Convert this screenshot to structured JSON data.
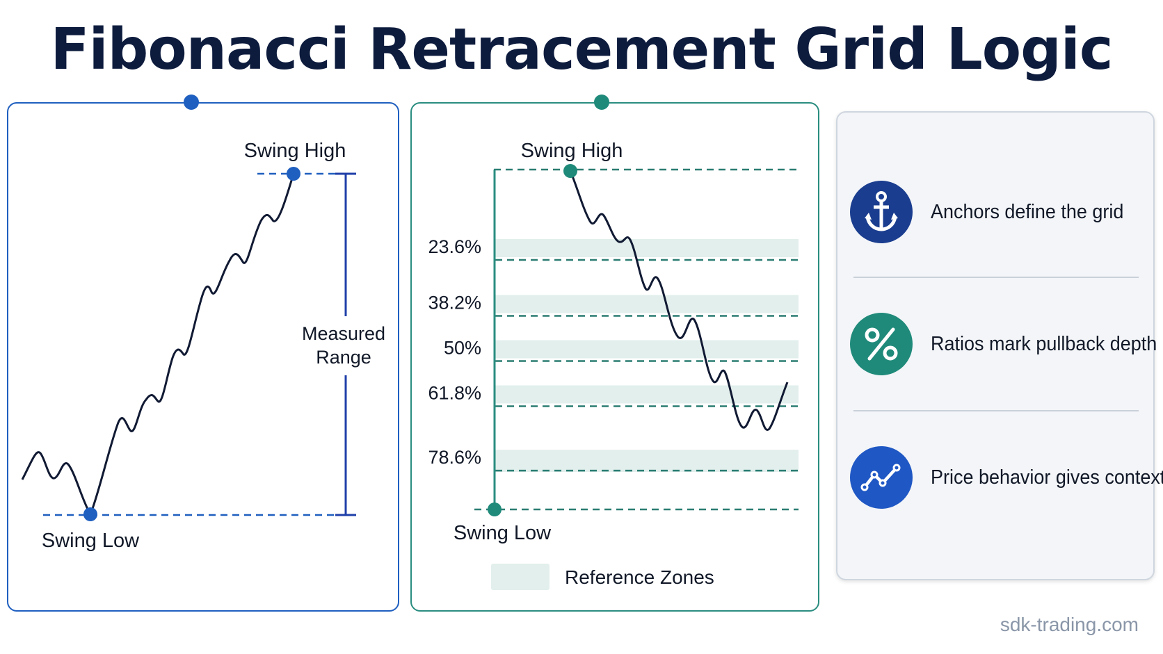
{
  "title": "Fibonacci Retracement Grid Logic",
  "left_panel": {
    "swing_high": "Swing High",
    "swing_low": "Swing Low",
    "measured_range_line1": "Measured",
    "measured_range_line2": "Range"
  },
  "mid_panel": {
    "swing_high": "Swing High",
    "swing_low": "Swing Low",
    "levels": [
      {
        "label": "23.6%",
        "ratio": 0.236
      },
      {
        "label": "38.2%",
        "ratio": 0.382
      },
      {
        "label": "50%",
        "ratio": 0.5
      },
      {
        "label": "61.8%",
        "ratio": 0.618
      },
      {
        "label": "78.6%",
        "ratio": 0.786
      }
    ],
    "legend": "Reference Zones"
  },
  "features": [
    {
      "text": "Anchors define the grid",
      "icon": "anchor-icon",
      "color": "#1a3d8f"
    },
    {
      "text": "Ratios mark pullback depth",
      "icon": "percent-icon",
      "color": "#1f8a7a"
    },
    {
      "text": "Price behavior gives context",
      "icon": "trend-icon",
      "color": "#1f57c4"
    }
  ],
  "credit": "sdk-trading.com",
  "colors": {
    "blue": "#1f5fbf",
    "teal": "#2a8d80",
    "zone": "#e2efec",
    "navy": "#0d1b3d"
  }
}
